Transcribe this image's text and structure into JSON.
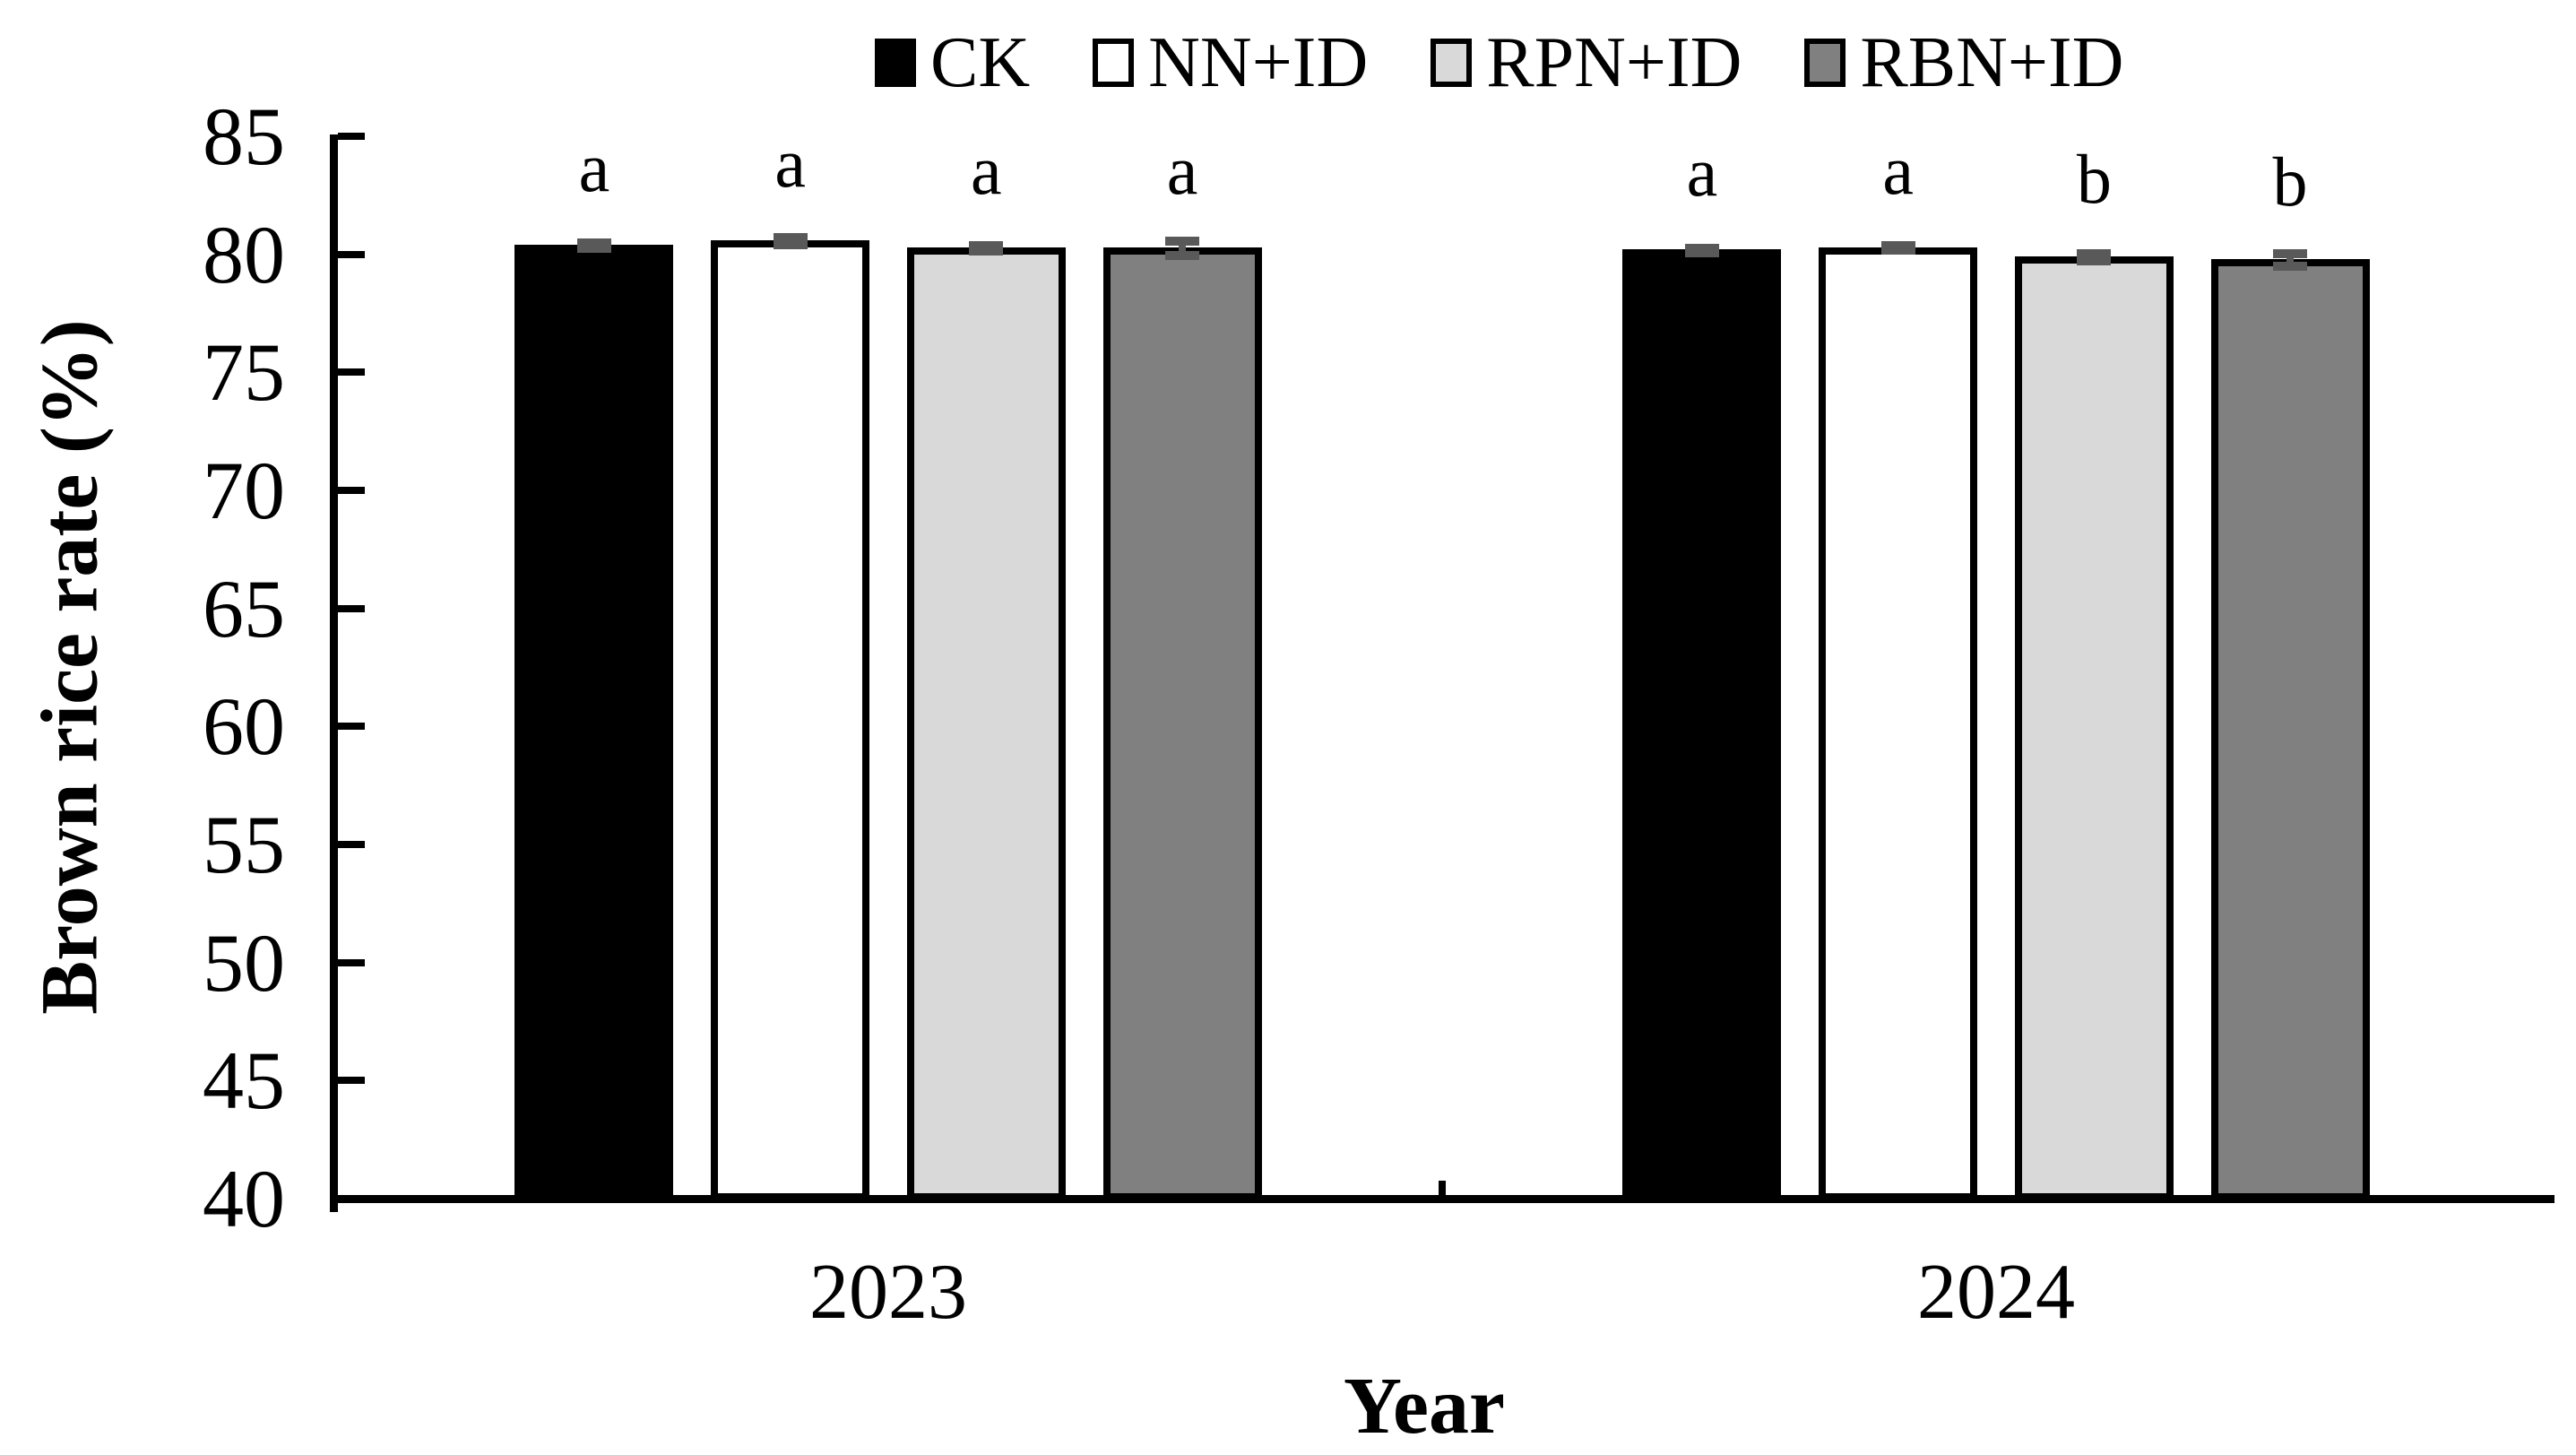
{
  "chart_data": {
    "type": "bar",
    "title": "",
    "xlabel": "Year",
    "ylabel": "Brown rice rate (%)",
    "ylim": [
      40,
      85
    ],
    "yticks": [
      40,
      45,
      50,
      55,
      60,
      65,
      70,
      75,
      80,
      85
    ],
    "categories": [
      "2023",
      "2024"
    ],
    "series": [
      {
        "name": "CK",
        "fill": "#000000",
        "values": [
          80.4,
          80.2
        ],
        "errors": [
          0.12,
          0.1
        ],
        "letters": [
          "a",
          "a"
        ]
      },
      {
        "name": "NN+ID",
        "fill": "#ffffff",
        "values": [
          80.6,
          80.3
        ],
        "errors": [
          0.15,
          0.1
        ],
        "letters": [
          "a",
          "a"
        ]
      },
      {
        "name": "RPN+ID",
        "fill": "#d9d9d9",
        "values": [
          80.3,
          79.9
        ],
        "errors": [
          0.12,
          0.15
        ],
        "letters": [
          "a",
          "b"
        ]
      },
      {
        "name": "RBN+ID",
        "fill": "#808080",
        "values": [
          80.3,
          79.8
        ],
        "errors": [
          0.3,
          0.25
        ],
        "letters": [
          "a",
          "b"
        ]
      }
    ],
    "error_color": "#595959",
    "axis_color": "#000000",
    "legend_position": "top",
    "grid": false
  }
}
